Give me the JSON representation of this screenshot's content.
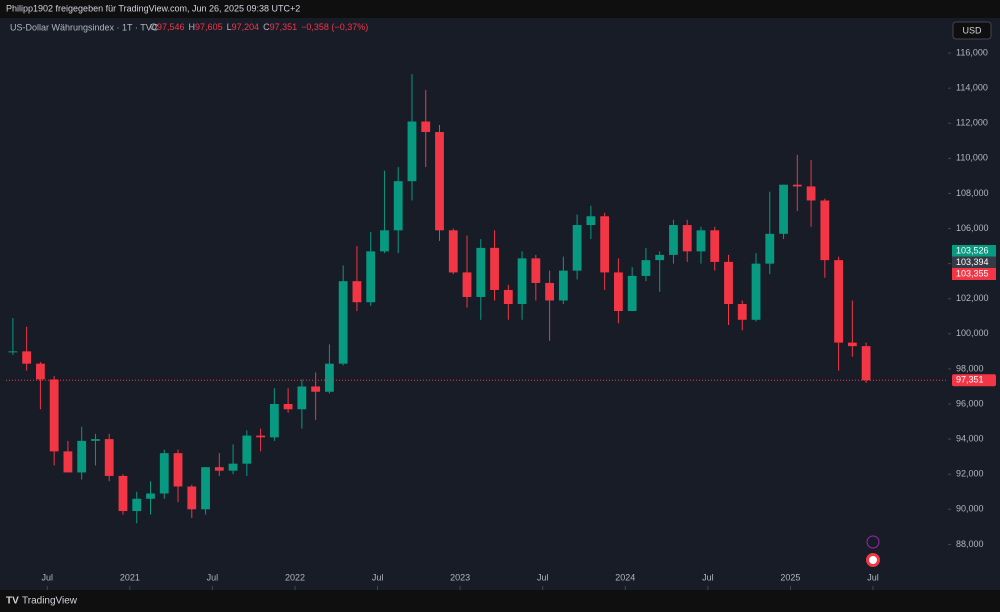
{
  "header": {
    "text": "Philipp1902 freigegeben für TradingView.com, Jun 26, 2025 09:38 UTC+2"
  },
  "currency": "USD",
  "footer": {
    "logo": "TradingView"
  },
  "chart_data": {
    "type": "candlestick",
    "title": "US-Dollar Währungsindex · 1T · TVC",
    "ohlc_legend": [
      [
        "O",
        "97,546"
      ],
      [
        "H",
        "97,605"
      ],
      [
        "L",
        "97,204"
      ],
      [
        "C",
        "97,351"
      ]
    ],
    "change": "−0,358 (−0,37%)",
    "up_color": "#089981",
    "down_color": "#f23645",
    "x": [
      "2020-04",
      "2020-05",
      "2020-06",
      "2020-07",
      "2020-08",
      "2020-09",
      "2020-10",
      "2020-11",
      "2020-12",
      "2021-01",
      "2021-02",
      "2021-03",
      "2021-04",
      "2021-05",
      "2021-06",
      "2021-07",
      "2021-08",
      "2021-09",
      "2021-10",
      "2021-11",
      "2021-12",
      "2022-01",
      "2022-02",
      "2022-03",
      "2022-04",
      "2022-05",
      "2022-06",
      "2022-07",
      "2022-08",
      "2022-09",
      "2022-10",
      "2022-11",
      "2022-12",
      "2023-01",
      "2023-02",
      "2023-03",
      "2023-04",
      "2023-05",
      "2023-06",
      "2023-07",
      "2023-08",
      "2023-09",
      "2023-10",
      "2023-11",
      "2023-12",
      "2024-01",
      "2024-02",
      "2024-03",
      "2024-04",
      "2024-05",
      "2024-06",
      "2024-07",
      "2024-08",
      "2024-09",
      "2024-10",
      "2024-11",
      "2024-12",
      "2025-01",
      "2025-02",
      "2025-03",
      "2025-04",
      "2025-05",
      "2025-06"
    ],
    "open": [
      99.0,
      99.0,
      98.3,
      97.4,
      93.3,
      92.1,
      93.9,
      94.0,
      91.9,
      89.9,
      90.6,
      90.9,
      93.2,
      91.3,
      90.0,
      92.4,
      92.2,
      92.6,
      94.2,
      94.1,
      96.0,
      95.7,
      97.0,
      96.7,
      98.3,
      103.0,
      101.8,
      104.7,
      105.9,
      108.7,
      112.1,
      111.5,
      105.9,
      103.5,
      102.1,
      104.9,
      102.5,
      101.7,
      104.3,
      102.9,
      101.9,
      103.6,
      106.2,
      106.7,
      103.5,
      101.3,
      103.3,
      104.2,
      104.5,
      106.2,
      104.7,
      105.9,
      104.1,
      101.7,
      100.8,
      104.0,
      105.7,
      108.5,
      108.4,
      107.6,
      104.2,
      99.5,
      99.3
    ],
    "high": [
      100.9,
      100.4,
      98.4,
      97.6,
      93.9,
      94.7,
      94.3,
      94.3,
      92.0,
      91.0,
      91.6,
      93.4,
      93.4,
      91.4,
      92.4,
      93.2,
      93.7,
      94.5,
      94.6,
      96.9,
      96.9,
      97.4,
      97.8,
      99.4,
      103.9,
      105.0,
      105.8,
      109.3,
      109.5,
      114.8,
      113.9,
      111.9,
      106.0,
      105.6,
      105.4,
      105.9,
      102.8,
      104.7,
      104.5,
      103.6,
      104.4,
      106.8,
      107.3,
      106.9,
      104.3,
      103.8,
      104.9,
      104.7,
      106.5,
      106.5,
      106.1,
      106.1,
      104.5,
      101.9,
      104.6,
      108.1,
      108.5,
      110.2,
      109.9,
      107.7,
      104.4,
      101.9,
      99.5
    ],
    "low": [
      98.8,
      97.9,
      95.7,
      92.5,
      92.1,
      91.7,
      92.5,
      91.6,
      89.7,
      89.2,
      89.7,
      90.6,
      90.4,
      89.5,
      89.7,
      91.9,
      92.0,
      91.9,
      93.3,
      93.9,
      95.5,
      94.6,
      95.1,
      96.6,
      98.2,
      101.3,
      101.6,
      104.6,
      104.6,
      107.6,
      109.5,
      105.3,
      103.4,
      101.5,
      100.8,
      101.9,
      100.8,
      100.8,
      101.9,
      99.6,
      101.7,
      103.1,
      105.4,
      102.5,
      100.6,
      101.3,
      103.0,
      102.4,
      104.0,
      104.1,
      104.0,
      103.6,
      100.5,
      100.2,
      100.7,
      103.4,
      105.4,
      107.0,
      106.1,
      103.2,
      97.9,
      98.7,
      97.204
    ],
    "close": [
      99.0,
      98.3,
      97.4,
      93.3,
      92.1,
      93.9,
      94.0,
      91.9,
      89.9,
      90.6,
      90.9,
      93.2,
      91.3,
      90.0,
      92.4,
      92.2,
      92.6,
      94.2,
      94.1,
      96.0,
      95.7,
      97.0,
      96.7,
      98.3,
      103.0,
      101.8,
      104.7,
      105.9,
      108.7,
      112.1,
      111.5,
      105.9,
      103.5,
      102.1,
      104.9,
      102.5,
      101.7,
      104.3,
      102.9,
      101.9,
      103.6,
      106.2,
      106.7,
      103.5,
      101.3,
      103.3,
      104.2,
      104.5,
      106.2,
      104.7,
      105.9,
      104.1,
      101.7,
      100.8,
      104.0,
      105.7,
      108.5,
      108.4,
      107.6,
      104.2,
      99.5,
      99.3,
      97.351
    ],
    "xlim": [
      "2020-04",
      "2025-07"
    ],
    "xticks": [
      {
        "value": "2020-07",
        "label": "Jul"
      },
      {
        "value": "2021-01",
        "label": "2021"
      },
      {
        "value": "2021-07",
        "label": "Jul"
      },
      {
        "value": "2022-01",
        "label": "2022"
      },
      {
        "value": "2022-07",
        "label": "Jul"
      },
      {
        "value": "2023-01",
        "label": "2023"
      },
      {
        "value": "2023-07",
        "label": "Jul"
      },
      {
        "value": "2024-01",
        "label": "2024"
      },
      {
        "value": "2024-07",
        "label": "Jul"
      },
      {
        "value": "2025-01",
        "label": "2025"
      },
      {
        "value": "2025-07",
        "label": "Jul"
      }
    ],
    "ylim": [
      85.4,
      118.0
    ],
    "yticks": [
      {
        "value": 88,
        "label": "88,000"
      },
      {
        "value": 90,
        "label": "90,000"
      },
      {
        "value": 92,
        "label": "92,000"
      },
      {
        "value": 94,
        "label": "94,000"
      },
      {
        "value": 96,
        "label": "96,000"
      },
      {
        "value": 98,
        "label": "98,000"
      },
      {
        "value": 100,
        "label": "100,000"
      },
      {
        "value": 102,
        "label": "102,000"
      },
      {
        "value": 104,
        "label": "104,000"
      },
      {
        "value": 106,
        "label": "106,000"
      },
      {
        "value": 108,
        "label": "108,000"
      },
      {
        "value": 110,
        "label": "110,000"
      },
      {
        "value": 112,
        "label": "112,000"
      },
      {
        "value": 114,
        "label": "114,000"
      },
      {
        "value": 116,
        "label": "116,000"
      }
    ],
    "last_price": {
      "value": 97.351,
      "label": "97,351"
    },
    "badges": [
      {
        "label": "103,526",
        "color": "#089981"
      },
      {
        "label": "103,394",
        "color": "#363a45"
      },
      {
        "label": "103,355",
        "color": "#f23645"
      }
    ]
  }
}
